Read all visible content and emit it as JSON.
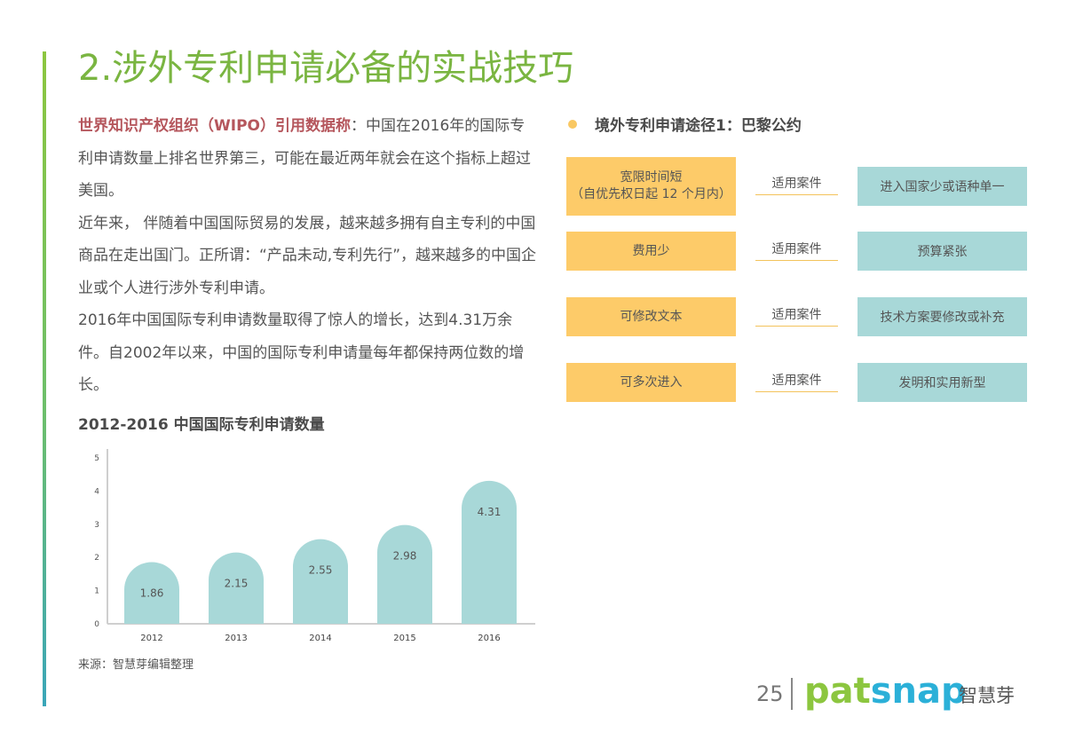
{
  "page": {
    "title": "2.涉外专利申请必备的实战技巧",
    "number": "25"
  },
  "intro": {
    "highlight": "世界知识产权组织（WIPO）引用数据称",
    "text1": "：中国在2016年的国际专利申请数量上排名世界第三，可能在最近两年就会在这个指标上超过美国。",
    "text2": "近年来，  伴随着中国国际贸易的发展，越来越多拥有自主专利的中国商品在走出国门。正所谓：“产品未动,专利先行”，越来越多的中国企业或个人进行涉外专利申请。",
    "text3": "2016年中国国际专利申请数量取得了惊人的增长，达到4.31万余件。自2002年以来，中国的国际专利申请量每年都保持两位数的增长。"
  },
  "chart_data": {
    "type": "bar",
    "title": "2012-2016 中国国际专利申请数量",
    "categories": [
      "2012",
      "2013",
      "2014",
      "2015",
      "2016"
    ],
    "values": [
      1.86,
      2.15,
      2.55,
      2.98,
      4.31
    ],
    "value_labels": [
      "1.86",
      "2.15",
      "2.55",
      "2.98",
      "4.31"
    ],
    "yticks": [
      "0",
      "1",
      "2",
      "3",
      "4",
      "5"
    ],
    "ylim": [
      0,
      5
    ],
    "xlabel": "",
    "ylabel": "",
    "grid": false,
    "bar_color": "#a8d8d8",
    "source": "来源：智慧芽编辑整理"
  },
  "routes": {
    "heading": "境外专利申请途径1：巴黎公约",
    "rows": [
      {
        "advantage": "宽限时间短",
        "advantage_sub": "（自优先权日起 12 个月内）",
        "link": "适用案件",
        "case": "进入国家少或语种单一"
      },
      {
        "advantage": "费用少",
        "advantage_sub": "",
        "link": "适用案件",
        "case": "预算紧张"
      },
      {
        "advantage": "可修改文本",
        "advantage_sub": "",
        "link": "适用案件",
        "case": "技术方案要修改或补充"
      },
      {
        "advantage": "可多次进入",
        "advantage_sub": "",
        "link": "适用案件",
        "case": "发明和实用新型"
      }
    ]
  },
  "brand": {
    "part1": "pat",
    "part2": "snap",
    "cn": "智慧芽"
  },
  "colors": {
    "title_green": "#7ab541",
    "highlight_red": "#b5565c",
    "yellow": "#fdcb69",
    "teal": "#a8d8d8"
  }
}
